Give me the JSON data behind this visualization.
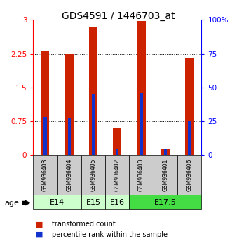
{
  "title": "GDS4591 / 1446703_at",
  "samples": [
    "GSM936403",
    "GSM936404",
    "GSM936405",
    "GSM936402",
    "GSM936400",
    "GSM936401",
    "GSM936406"
  ],
  "transformed_counts": [
    2.3,
    2.25,
    2.85,
    0.6,
    2.98,
    0.15,
    2.15
  ],
  "percentile_ranks": [
    28,
    27,
    45,
    5,
    46,
    5,
    25
  ],
  "ylim_left": [
    0,
    3
  ],
  "ylim_right": [
    0,
    100
  ],
  "yticks_left": [
    0,
    0.75,
    1.5,
    2.25,
    3
  ],
  "yticks_right": [
    0,
    25,
    50,
    75,
    100
  ],
  "ytick_right_labels": [
    "0",
    "25",
    "50",
    "75",
    "100%"
  ],
  "bar_color": "#cc2200",
  "percentile_color": "#1133cc",
  "bar_width": 0.35,
  "sample_bg": "#cccccc",
  "age_groups": [
    {
      "label": "E14",
      "start": 0,
      "end": 1,
      "color": "#ccffcc"
    },
    {
      "label": "E15",
      "start": 2,
      "end": 2,
      "color": "#ccffcc"
    },
    {
      "label": "E16",
      "start": 3,
      "end": 3,
      "color": "#ccffcc"
    },
    {
      "label": "E17.5",
      "start": 4,
      "end": 6,
      "color": "#44dd44"
    }
  ]
}
